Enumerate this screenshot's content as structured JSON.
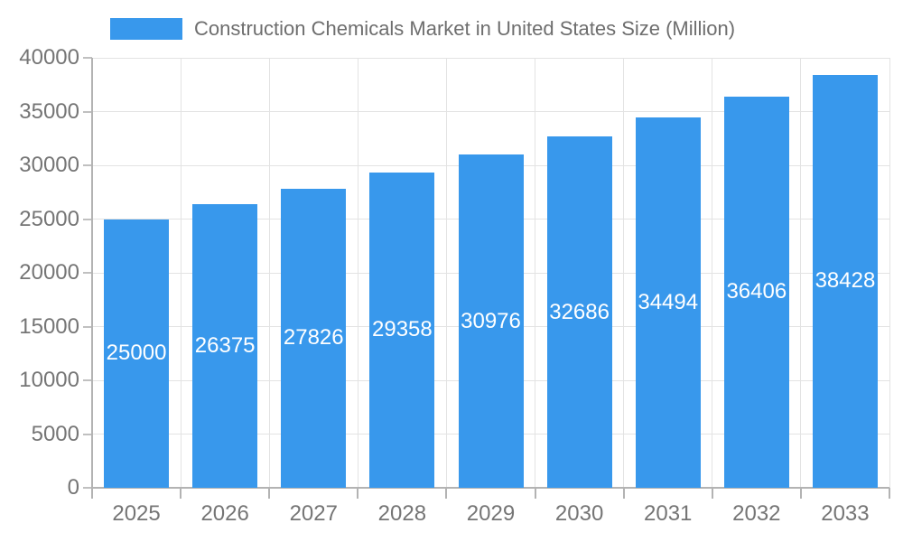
{
  "chart_data": {
    "type": "bar",
    "title": "Construction Chemicals Market in United States Size (Million)",
    "categories": [
      "2025",
      "2026",
      "2027",
      "2028",
      "2029",
      "2030",
      "2031",
      "2032",
      "2033"
    ],
    "values": [
      25000,
      26375,
      27826,
      29358,
      30976,
      32686,
      34494,
      36406,
      38428
    ],
    "xlabel": "",
    "ylabel": "",
    "ylim": [
      0,
      40000
    ],
    "ytick_step": 5000,
    "ytick_labels": [
      "0",
      "5000",
      "10000",
      "15000",
      "20000",
      "25000",
      "30000",
      "35000",
      "40000"
    ],
    "grid": true,
    "legend_position": "top",
    "colors": {
      "bar": "#3898EC",
      "bar_label": "#ffffff",
      "axis_text": "#757575",
      "legend_text": "#6e6e6e",
      "gridline": "#e3e3e3",
      "axis_line": "#b3b3b3"
    }
  }
}
